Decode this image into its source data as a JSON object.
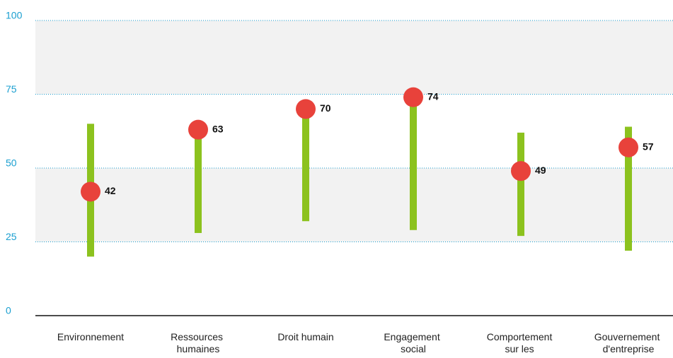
{
  "chart_data": {
    "type": "range-dot",
    "categories": [
      "Environnement",
      "Ressources humaines",
      "Droit humain",
      "Engagement social",
      "Comportement sur les marchés",
      "Gouvernement d'entreprise"
    ],
    "values": [
      42,
      63,
      70,
      74,
      49,
      57
    ],
    "low": [
      20,
      28,
      32,
      29,
      27,
      22
    ],
    "high": [
      65,
      63,
      70,
      74,
      62,
      64
    ],
    "color": "#e8423b",
    "range_color": "#8cc21e",
    "ylim": [
      0,
      100
    ],
    "yticks": [
      0,
      25,
      50,
      75,
      100
    ],
    "grid": true
  }
}
